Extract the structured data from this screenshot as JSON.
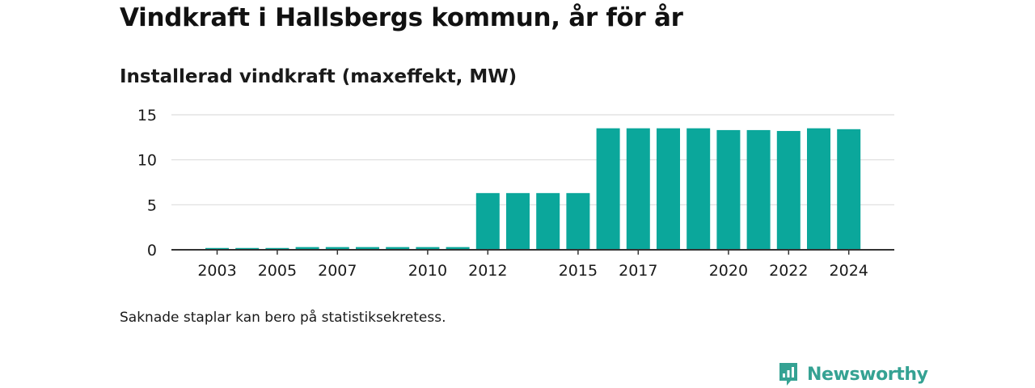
{
  "header": {
    "title": "Vindkraft i Hallsbergs kommun, år för år",
    "subtitle": "Installerad vindkraft (maxeffekt, MW)"
  },
  "footnote": "Saknade staplar kan bero på statistiksekretess.",
  "brand": {
    "name": "Newsworthy",
    "icon": "newsworthy-logo-icon",
    "color": "#35a293"
  },
  "colors": {
    "bar": "#0ba79b",
    "grid": "#dddddd",
    "axis": "#333333"
  },
  "chart_data": {
    "type": "bar",
    "title": "Installerad vindkraft (maxeffekt, MW)",
    "categories": [
      "2003",
      "2004",
      "2005",
      "2006",
      "2007",
      "2008",
      "2009",
      "2010",
      "2011",
      "2012",
      "2013",
      "2014",
      "2015",
      "2016",
      "2017",
      "2018",
      "2019",
      "2020",
      "2021",
      "2022",
      "2023",
      "2024"
    ],
    "values": [
      0.2,
      0.2,
      0.2,
      0.3,
      0.3,
      0.3,
      0.3,
      0.3,
      0.3,
      6.3,
      6.3,
      6.3,
      6.3,
      13.5,
      13.5,
      13.5,
      13.5,
      13.3,
      13.3,
      13.2,
      13.5,
      13.4
    ],
    "x_tick_labels": [
      "2003",
      "2005",
      "2007",
      "2010",
      "2012",
      "2015",
      "2017",
      "2020",
      "2022",
      "2024"
    ],
    "y_ticks": [
      0,
      5,
      10,
      15
    ],
    "ylim": [
      0,
      15
    ],
    "xlabel": "",
    "ylabel": "",
    "grid": true
  }
}
